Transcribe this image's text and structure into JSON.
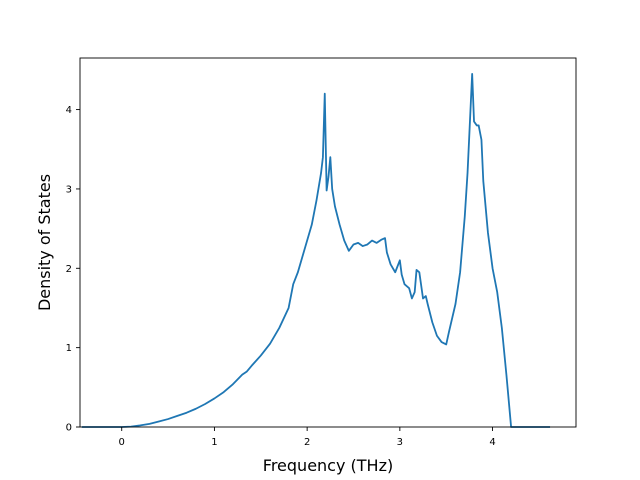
{
  "chart_data": {
    "type": "line",
    "title": "",
    "xlabel": "Frequency (THz)",
    "ylabel": "Density of States",
    "xlim": [
      -0.45,
      4.9
    ],
    "ylim": [
      0,
      4.65
    ],
    "xticks": [
      0,
      1,
      2,
      3,
      4
    ],
    "yticks": [
      0,
      1,
      2,
      3,
      4
    ],
    "grid": false,
    "line_color": "#1f77b4",
    "series": [
      {
        "x": [
          -0.43,
          0.0,
          0.1,
          0.2,
          0.3,
          0.4,
          0.5,
          0.6,
          0.7,
          0.8,
          0.9,
          1.0,
          1.1,
          1.2,
          1.3,
          1.35,
          1.4,
          1.5,
          1.6,
          1.7,
          1.8,
          1.85,
          1.9,
          1.95,
          2.0,
          2.05,
          2.1,
          2.15,
          2.17,
          2.19,
          2.21,
          2.23,
          2.25,
          2.27,
          2.3,
          2.35,
          2.4,
          2.45,
          2.5,
          2.55,
          2.6,
          2.65,
          2.7,
          2.75,
          2.8,
          2.84,
          2.86,
          2.9,
          2.95,
          3.0,
          3.02,
          3.05,
          3.1,
          3.13,
          3.16,
          3.18,
          3.21,
          3.25,
          3.28,
          3.3,
          3.35,
          3.4,
          3.45,
          3.5,
          3.53,
          3.6,
          3.65,
          3.7,
          3.73,
          3.76,
          3.78,
          3.8,
          3.83,
          3.85,
          3.88,
          3.9,
          3.95,
          4.0,
          4.05,
          4.1,
          4.15,
          4.2,
          4.23,
          4.3,
          4.4,
          4.5,
          4.62
        ],
        "y": [
          0,
          0,
          0.005,
          0.02,
          0.04,
          0.07,
          0.1,
          0.14,
          0.18,
          0.23,
          0.29,
          0.36,
          0.44,
          0.54,
          0.66,
          0.7,
          0.77,
          0.9,
          1.05,
          1.25,
          1.5,
          1.8,
          1.95,
          2.15,
          2.35,
          2.55,
          2.85,
          3.2,
          3.4,
          4.2,
          2.98,
          3.15,
          3.4,
          3.0,
          2.78,
          2.55,
          2.35,
          2.22,
          2.3,
          2.32,
          2.28,
          2.3,
          2.35,
          2.32,
          2.36,
          2.38,
          2.2,
          2.05,
          1.95,
          2.1,
          1.92,
          1.8,
          1.75,
          1.62,
          1.7,
          1.98,
          1.95,
          1.62,
          1.65,
          1.55,
          1.32,
          1.15,
          1.07,
          1.04,
          1.2,
          1.55,
          1.95,
          2.65,
          3.2,
          3.95,
          4.45,
          3.85,
          3.8,
          3.8,
          3.62,
          3.1,
          2.45,
          2.0,
          1.7,
          1.25,
          0.65,
          0.0,
          0.0,
          0.0,
          0.0,
          0.0,
          0.0
        ]
      }
    ]
  }
}
